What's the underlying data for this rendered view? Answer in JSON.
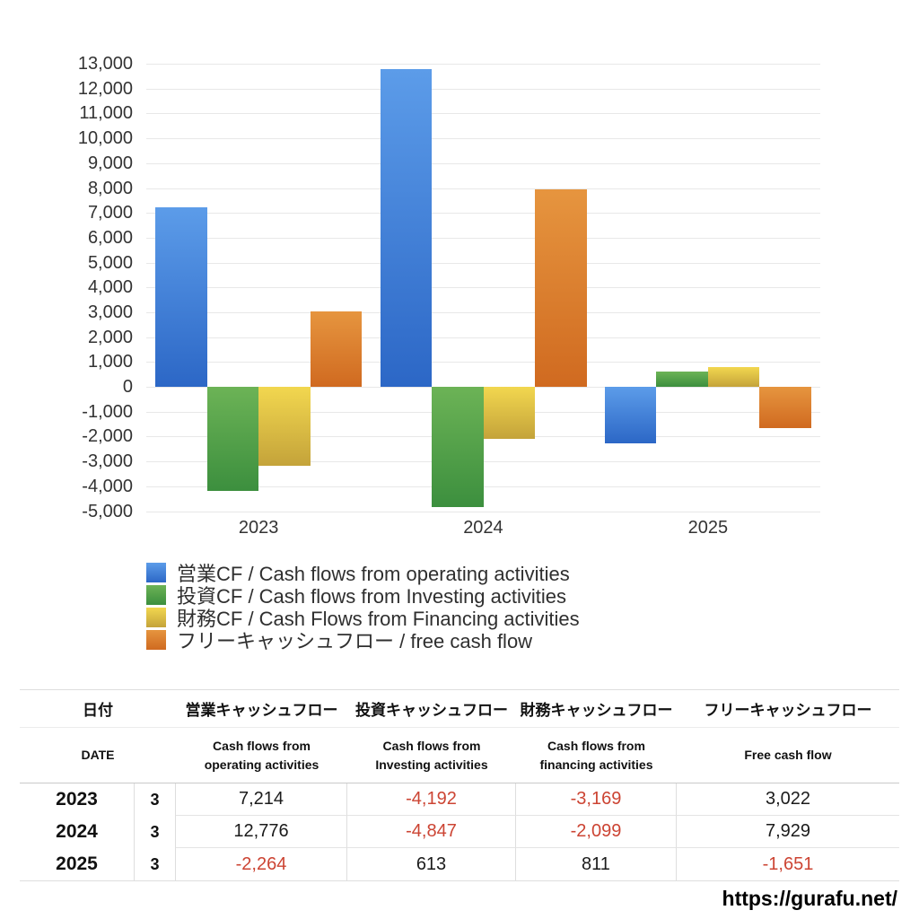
{
  "page": {
    "url_watermark": "https://gurafu.net/"
  },
  "chart_data": {
    "type": "bar",
    "title": "",
    "categories": [
      "2023",
      "2024",
      "2025"
    ],
    "series": [
      {
        "name": "営業CF / Cash flows from operating activities",
        "color_top": "#5c9ce9",
        "color_bottom": "#2c67c6",
        "values": [
          7214,
          12776,
          -2264
        ]
      },
      {
        "name": "投資CF / Cash flows from Investing activities",
        "color_top": "#6cb356",
        "color_bottom": "#3c8f3e",
        "values": [
          -4192,
          -4847,
          613
        ]
      },
      {
        "name": "財務CF / Cash Flows from Financing activities",
        "color_top": "#f2d74f",
        "color_bottom": "#c4a33a",
        "values": [
          -3169,
          -2099,
          811
        ]
      },
      {
        "name": "フリーキャッシュフロー / free cash flow",
        "color_top": "#e6953f",
        "color_bottom": "#d06a20",
        "values": [
          3022,
          7929,
          -1651
        ]
      }
    ],
    "ylim": [
      -5000,
      13000
    ],
    "y_step": 1000,
    "grid": "horizontal",
    "legend_position": "bottom-left"
  },
  "table": {
    "headers_jp": [
      "日付",
      "営業キャッシュフロー",
      "投資キャッシュフロー",
      "財務キャッシュフロー",
      "フリーキャッシュフロー"
    ],
    "headers_en": [
      "DATE",
      "Cash flows from\noperating activities",
      "Cash flows from\nInvesting activities",
      "Cash flows from\nfinancing activities",
      "Free cash flow"
    ],
    "rows": [
      {
        "year": "2023",
        "month": "3",
        "values": [
          "7,214",
          "-4,192",
          "-3,169",
          "3,022"
        ]
      },
      {
        "year": "2024",
        "month": "3",
        "values": [
          "12,776",
          "-4,847",
          "-2,099",
          "7,929"
        ]
      },
      {
        "year": "2025",
        "month": "3",
        "values": [
          "-2,264",
          "613",
          "811",
          "-1,651"
        ]
      }
    ],
    "negative_color": "#cc4433"
  }
}
